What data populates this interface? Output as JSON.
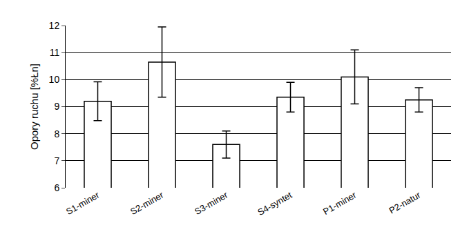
{
  "chart_data": {
    "type": "bar",
    "y_label": "Opory ruchu [%Łn]",
    "categories": [
      "S1-miner",
      "S2-miner",
      "S3-miner",
      "S4-syntet",
      "P1-miner",
      "P2-natur"
    ],
    "values": [
      9.2,
      10.65,
      7.6,
      9.35,
      10.1,
      9.25
    ],
    "errors": [
      0.72,
      1.3,
      0.5,
      0.55,
      1.0,
      0.45
    ],
    "color": "#ffffff",
    "ylim": [
      6,
      12
    ],
    "yticks": [
      6,
      7,
      8,
      9,
      10,
      11,
      12
    ],
    "grid": true
  }
}
